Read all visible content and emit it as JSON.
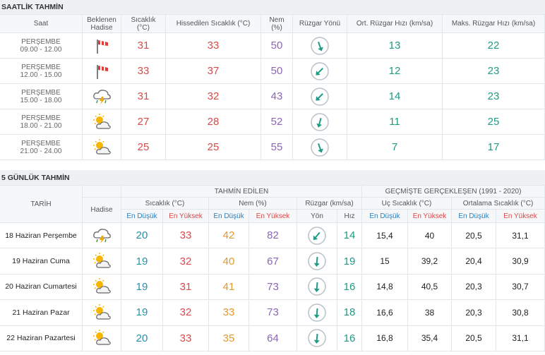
{
  "hourly": {
    "title": "SAATLİK TAHMİN",
    "headers": [
      "Saat",
      "Beklenen Hadise",
      "Sıcaklık (°C)",
      "Hissedilen Sıcaklık (°C)",
      "Nem (%)",
      "Rüzgar Yönü",
      "Ort. Rüzgar Hızı (km/sa)",
      "Maks. Rüzgar Hızı (km/sa)"
    ],
    "rows": [
      {
        "day": "PERŞEMBE",
        "time": "09.00 - 12.00",
        "temp": "31",
        "feels": "33",
        "humidity": "50",
        "wind_avg": "13",
        "wind_max": "22"
      },
      {
        "day": "PERŞEMBE",
        "time": "12.00 - 15.00",
        "temp": "33",
        "feels": "37",
        "humidity": "50",
        "wind_avg": "12",
        "wind_max": "23"
      },
      {
        "day": "PERŞEMBE",
        "time": "15.00 - 18.00",
        "temp": "31",
        "feels": "32",
        "humidity": "43",
        "wind_avg": "14",
        "wind_max": "23"
      },
      {
        "day": "PERŞEMBE",
        "time": "18.00 - 21.00",
        "temp": "27",
        "feels": "28",
        "humidity": "52",
        "wind_avg": "11",
        "wind_max": "25"
      },
      {
        "day": "PERŞEMBE",
        "time": "21.00 - 24.00",
        "temp": "25",
        "feels": "25",
        "humidity": "55",
        "wind_avg": "7",
        "wind_max": "17"
      }
    ]
  },
  "daily": {
    "title": "5 GÜNLÜK TAHMİN",
    "group_forecast": "TAHMİN EDİLEN",
    "group_past": "GEÇMİŞTE GERÇEKLEŞEN (1991 - 2020)",
    "date_header": "TARİH",
    "event_header": "Hadise",
    "temp_header": "Sıcaklık (°C)",
    "humidity_header": "Nem (%)",
    "wind_header": "Rüzgar (km/sa)",
    "extreme_header": "Uç Sıcaklık (°C)",
    "avg_header": "Ortalama Sıcaklık (°C)",
    "low": "En Düşük",
    "high": "En Yüksek",
    "dir": "Yön",
    "speed": "Hız",
    "rows": [
      {
        "date": "18 Haziran Perşembe",
        "temp_low": "20",
        "temp_high": "33",
        "hum_low": "42",
        "hum_high": "82",
        "speed": "14",
        "ext_low": "15,4",
        "ext_high": "40",
        "avg_low": "20,5",
        "avg_high": "31,1"
      },
      {
        "date": "19 Haziran Cuma",
        "temp_low": "19",
        "temp_high": "32",
        "hum_low": "40",
        "hum_high": "67",
        "speed": "19",
        "ext_low": "15",
        "ext_high": "39,2",
        "avg_low": "20,4",
        "avg_high": "30,9"
      },
      {
        "date": "20 Haziran Cumartesi",
        "temp_low": "19",
        "temp_high": "31",
        "hum_low": "41",
        "hum_high": "73",
        "speed": "16",
        "ext_low": "14,8",
        "ext_high": "40,5",
        "avg_low": "20,3",
        "avg_high": "30,7"
      },
      {
        "date": "21 Haziran Pazar",
        "temp_low": "19",
        "temp_high": "32",
        "hum_low": "33",
        "hum_high": "73",
        "speed": "18",
        "ext_low": "16,6",
        "ext_high": "38",
        "avg_low": "20,3",
        "avg_high": "30,8"
      },
      {
        "date": "22 Haziran Pazartesi",
        "temp_low": "20",
        "temp_high": "33",
        "hum_low": "35",
        "hum_high": "64",
        "speed": "16",
        "ext_low": "16,8",
        "ext_high": "35,4",
        "avg_low": "20,5",
        "avg_high": "31,1"
      }
    ]
  }
}
